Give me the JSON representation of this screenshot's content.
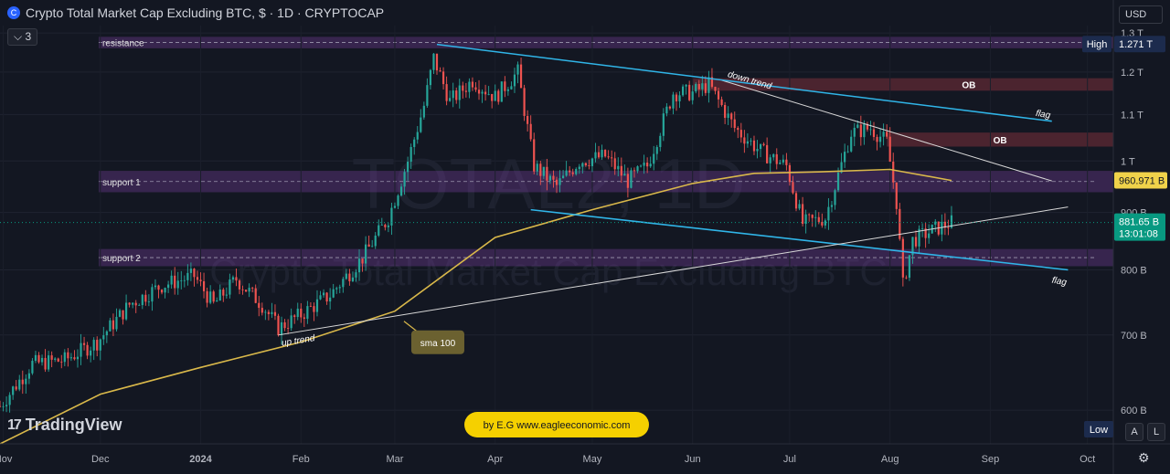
{
  "header": {
    "symbol_badge": "C",
    "title": "Crypto Total Market Cap Excluding BTC, $ · 1D · CRYPTOCAP",
    "indicator_count": "3",
    "currency": "USD"
  },
  "watermark": {
    "symbol": "TOTAL2, 1D",
    "name": "Crypto Total Market Cap Excluding BTC"
  },
  "branding": {
    "logo_text": "TradingView",
    "credit": "by E.G www.eagleeconomic.com"
  },
  "controls": {
    "scale_auto": "A",
    "scale_log": "L"
  },
  "colors": {
    "background": "#131722",
    "up_candle": "#26a69a",
    "down_candle": "#ef5350",
    "sma": "#d9b84a",
    "flag_line": "#30b5e8",
    "zone": "#7b3fa0",
    "ob_zone": "#7a2f3a",
    "price_tag": "#089981"
  },
  "chart_data": {
    "type": "candlestick",
    "title": "Crypto Total Market Cap Excluding BTC",
    "ylabel": "",
    "xlabel": "",
    "y_scale": "log",
    "ylim": [
      560,
      1320
    ],
    "x_range": [
      "2023-10-31",
      "2024-10-09"
    ],
    "x_ticks": [
      {
        "label": "Nov",
        "date": "2023-11-01",
        "bold": false
      },
      {
        "label": "Dec",
        "date": "2023-12-01",
        "bold": false
      },
      {
        "label": "2024",
        "date": "2024-01-01",
        "bold": true
      },
      {
        "label": "Feb",
        "date": "2024-02-01",
        "bold": false
      },
      {
        "label": "Mar",
        "date": "2024-03-01",
        "bold": false
      },
      {
        "label": "Apr",
        "date": "2024-04-01",
        "bold": false
      },
      {
        "label": "May",
        "date": "2024-05-01",
        "bold": false
      },
      {
        "label": "Jun",
        "date": "2024-06-01",
        "bold": false
      },
      {
        "label": "Jul",
        "date": "2024-07-01",
        "bold": false
      },
      {
        "label": "Aug",
        "date": "2024-08-01",
        "bold": false
      },
      {
        "label": "Sep",
        "date": "2024-09-01",
        "bold": false
      },
      {
        "label": "Oct",
        "date": "2024-10-01",
        "bold": false
      }
    ],
    "y_ticks": [
      {
        "label": "1.3 T",
        "value": 1300
      },
      {
        "label": "1.2 T",
        "value": 1200
      },
      {
        "label": "1.1 T",
        "value": 1100
      },
      {
        "label": "1 T",
        "value": 1000
      },
      {
        "label": "900 B",
        "value": 900
      },
      {
        "label": "800 B",
        "value": 800
      },
      {
        "label": "700 B",
        "value": 700
      },
      {
        "label": "600 B",
        "value": 600
      }
    ],
    "price_path": [
      [
        "2023-10-31",
        605
      ],
      [
        "2023-11-10",
        660
      ],
      [
        "2023-11-20",
        665
      ],
      [
        "2023-11-30",
        690
      ],
      [
        "2023-12-10",
        745
      ],
      [
        "2023-12-20",
        775
      ],
      [
        "2023-12-30",
        790
      ],
      [
        "2024-01-05",
        745
      ],
      [
        "2024-01-12",
        785
      ],
      [
        "2024-01-20",
        745
      ],
      [
        "2024-01-25",
        710
      ],
      [
        "2024-02-01",
        730
      ],
      [
        "2024-02-10",
        760
      ],
      [
        "2024-02-20",
        820
      ],
      [
        "2024-02-28",
        890
      ],
      [
        "2024-03-05",
        1000
      ],
      [
        "2024-03-10",
        1120
      ],
      [
        "2024-03-13",
        1235
      ],
      [
        "2024-03-18",
        1130
      ],
      [
        "2024-03-25",
        1180
      ],
      [
        "2024-04-01",
        1140
      ],
      [
        "2024-04-08",
        1200
      ],
      [
        "2024-04-13",
        990
      ],
      [
        "2024-04-20",
        950
      ],
      [
        "2024-04-27",
        1000
      ],
      [
        "2024-05-05",
        1010
      ],
      [
        "2024-05-12",
        960
      ],
      [
        "2024-05-18",
        990
      ],
      [
        "2024-05-26",
        1150
      ],
      [
        "2024-06-01",
        1150
      ],
      [
        "2024-06-06",
        1170
      ],
      [
        "2024-06-14",
        1070
      ],
      [
        "2024-06-22",
        1020
      ],
      [
        "2024-06-30",
        990
      ],
      [
        "2024-07-05",
        880
      ],
      [
        "2024-07-12",
        890
      ],
      [
        "2024-07-20",
        1060
      ],
      [
        "2024-07-26",
        1070
      ],
      [
        "2024-07-31",
        1040
      ],
      [
        "2024-08-03",
        920
      ],
      [
        "2024-08-05",
        775
      ],
      [
        "2024-08-08",
        850
      ],
      [
        "2024-08-15",
        870
      ],
      [
        "2024-08-20",
        881.65
      ]
    ],
    "series": [
      {
        "name": "sma 100",
        "points": [
          [
            "2023-10-31",
            560
          ],
          [
            "2023-12-01",
            620
          ],
          [
            "2024-01-01",
            655
          ],
          [
            "2024-02-01",
            690
          ],
          [
            "2024-03-01",
            735
          ],
          [
            "2024-04-01",
            855
          ],
          [
            "2024-05-01",
            905
          ],
          [
            "2024-06-01",
            955
          ],
          [
            "2024-06-20",
            975
          ],
          [
            "2024-07-10",
            978
          ],
          [
            "2024-08-01",
            983
          ],
          [
            "2024-08-20",
            960.971
          ]
        ]
      }
    ],
    "zones": [
      {
        "label": "resistance",
        "low": 1260,
        "high": 1290
      },
      {
        "label": "support 1",
        "low": 938,
        "high": 980
      },
      {
        "label": "support 2",
        "low": 806,
        "high": 835
      },
      {
        "label": "OB",
        "from": "2024-06-01",
        "low": 1155,
        "high": 1185
      },
      {
        "label": "OB",
        "from": "2024-07-31",
        "low": 1030,
        "high": 1060
      }
    ],
    "trendlines": [
      {
        "label": "down trend",
        "from": [
          "2024-06-10",
          1180
        ],
        "to": [
          "2024-09-20",
          960
        ]
      },
      {
        "label": "flag",
        "from": [
          "2024-03-14",
          1270
        ],
        "to": [
          "2024-09-20",
          1085
        ]
      },
      {
        "label": "flag",
        "from": [
          "2024-04-12",
          905
        ],
        "to": [
          "2024-09-25",
          800
        ]
      },
      {
        "label": "up trend",
        "from": [
          "2024-01-25",
          700
        ],
        "to": [
          "2024-09-25",
          910
        ]
      }
    ],
    "annotations": [
      {
        "text": "sma 100",
        "at": [
          "2024-03-01",
          720
        ]
      }
    ],
    "price_tags": [
      {
        "label": "High",
        "value_label": "1.271 T",
        "value": 1271
      },
      {
        "label": "",
        "value_label": "960.971 B",
        "value": 960.971
      },
      {
        "label": "",
        "value_label": "881.65 B",
        "countdown": "13:01:08",
        "value": 881.65
      },
      {
        "label": "Low",
        "value_label": "",
        "value": 590
      }
    ]
  }
}
